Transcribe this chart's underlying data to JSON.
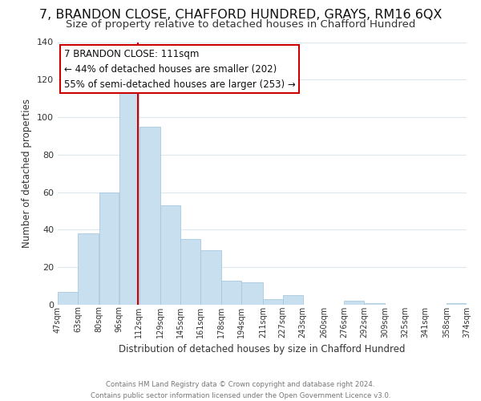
{
  "title": "7, BRANDON CLOSE, CHAFFORD HUNDRED, GRAYS, RM16 6QX",
  "subtitle": "Size of property relative to detached houses in Chafford Hundred",
  "xlabel": "Distribution of detached houses by size in Chafford Hundred",
  "ylabel": "Number of detached properties",
  "bar_color": "#c8dff0",
  "bar_edge_color": "#a8c8e0",
  "bin_edges": [
    47,
    63,
    80,
    96,
    112,
    129,
    145,
    161,
    178,
    194,
    211,
    227,
    243,
    260,
    276,
    292,
    309,
    325,
    341,
    358,
    374
  ],
  "bar_heights": [
    7,
    38,
    60,
    114,
    95,
    53,
    35,
    29,
    13,
    12,
    3,
    5,
    0,
    0,
    2,
    1,
    0,
    0,
    0,
    1
  ],
  "tick_labels": [
    "47sqm",
    "63sqm",
    "80sqm",
    "96sqm",
    "112sqm",
    "129sqm",
    "145sqm",
    "161sqm",
    "178sqm",
    "194sqm",
    "211sqm",
    "227sqm",
    "243sqm",
    "260sqm",
    "276sqm",
    "292sqm",
    "309sqm",
    "325sqm",
    "341sqm",
    "358sqm",
    "374sqm"
  ],
  "vline_x": 111,
  "vline_color": "#cc0000",
  "annotation_line1": "7 BRANDON CLOSE: 111sqm",
  "annotation_line2": "← 44% of detached houses are smaller (202)",
  "annotation_line3": "55% of semi-detached houses are larger (253) →",
  "ylim": [
    0,
    140
  ],
  "yticks": [
    0,
    20,
    40,
    60,
    80,
    100,
    120,
    140
  ],
  "footer_text": "Contains HM Land Registry data © Crown copyright and database right 2024.\nContains public sector information licensed under the Open Government Licence v3.0.",
  "background_color": "#ffffff",
  "grid_color": "#dce8f0",
  "title_fontsize": 11.5,
  "subtitle_fontsize": 9.5,
  "annotation_fontsize": 8.5,
  "ylabel_fontsize": 8.5,
  "xlabel_fontsize": 8.5
}
